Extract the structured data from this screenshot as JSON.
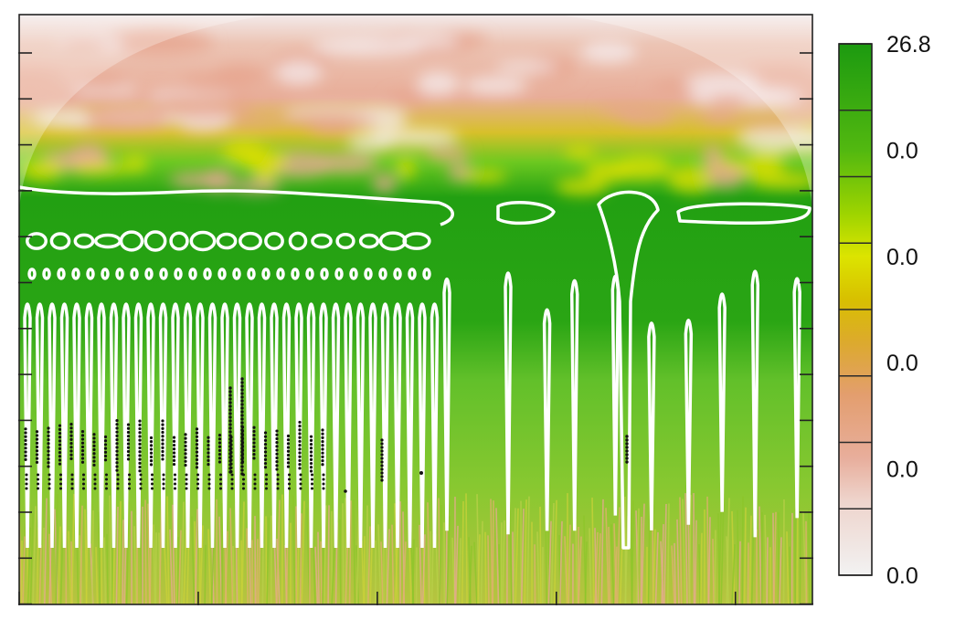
{
  "chart_data": {
    "type": "heatmap",
    "title": "",
    "xlabel": "",
    "ylabel": "",
    "x_axis": {
      "tick_count": 5,
      "tick_labels": []
    },
    "y_axis": {
      "tick_count": 13,
      "tick_labels": []
    },
    "colorbar": {
      "tick_labels": [
        "26.8",
        "0.0",
        "0.0",
        "0.0",
        "0.0",
        "0.0"
      ],
      "colors_low_to_high": [
        "#f2f2f2",
        "#eab2a0",
        "#e1a160",
        "#d9b21c",
        "#e0e000",
        "#8fd000",
        "#3aaa0a",
        "#1f9a10"
      ]
    },
    "grid": false,
    "features": {
      "significance_contours": "white",
      "cone_of_influence": "shaded top edge",
      "ridge_points": "black"
    }
  }
}
